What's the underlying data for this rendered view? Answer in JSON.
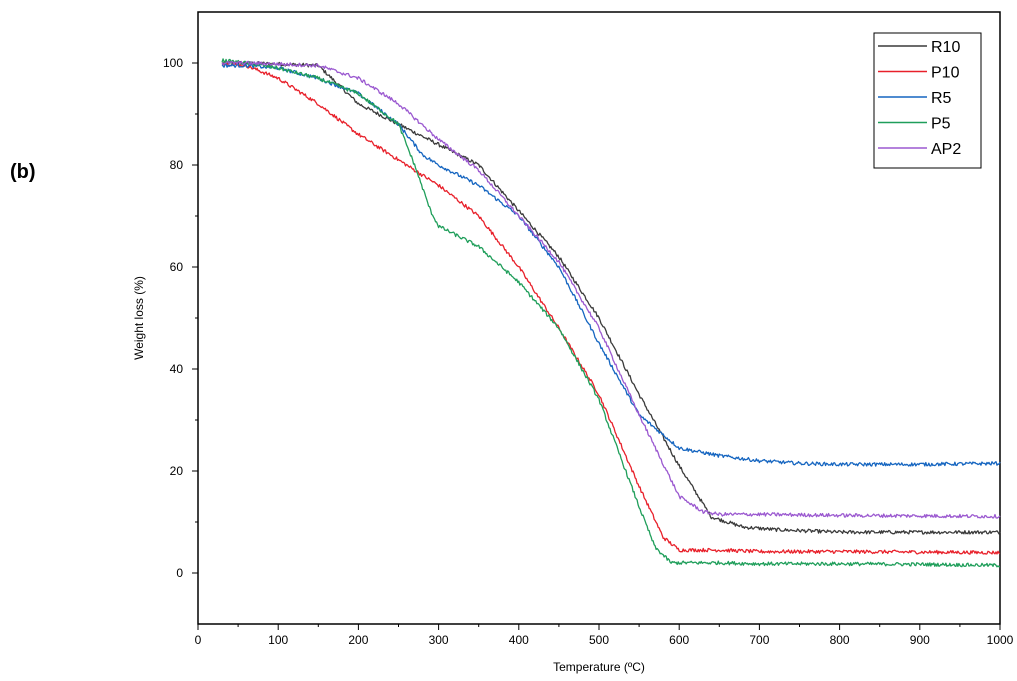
{
  "panel_label": "(b)",
  "chart_data": {
    "type": "line",
    "xlabel": "Temperature (ºC)",
    "ylabel": "Weight loss (%)",
    "xlim": [
      0,
      1000
    ],
    "ylim": [
      -10,
      110
    ],
    "xticks": [
      0,
      100,
      200,
      300,
      400,
      500,
      600,
      700,
      800,
      900,
      1000
    ],
    "yticks": [
      0,
      20,
      40,
      60,
      80,
      100
    ],
    "grid": false,
    "legend_position": "top-right",
    "series": [
      {
        "name": "R10",
        "color": "#3a3a3a",
        "x": [
          30,
          60,
          100,
          150,
          180,
          200,
          250,
          300,
          350,
          400,
          450,
          500,
          550,
          600,
          640,
          680,
          720,
          800,
          900,
          1000
        ],
        "y": [
          100,
          100,
          99.8,
          99.5,
          95,
          92,
          88,
          84,
          80,
          71,
          62,
          50,
          35,
          21,
          11,
          9,
          8.5,
          8,
          8,
          8
        ]
      },
      {
        "name": "P10",
        "color": "#e8202a",
        "x": [
          30,
          60,
          100,
          150,
          200,
          250,
          300,
          350,
          400,
          450,
          500,
          550,
          580,
          600,
          650,
          700,
          800,
          900,
          1000
        ],
        "y": [
          100,
          99.5,
          97,
          92,
          86,
          81,
          76,
          70,
          60,
          48,
          35,
          17,
          7,
          4.5,
          4.5,
          4.2,
          4.2,
          4.1,
          4
        ]
      },
      {
        "name": "R5",
        "color": "#1565c0",
        "x": [
          30,
          60,
          100,
          150,
          200,
          250,
          280,
          300,
          350,
          400,
          450,
          500,
          550,
          600,
          650,
          700,
          750,
          800,
          900,
          1000
        ],
        "y": [
          99.5,
          99.5,
          99,
          97,
          94,
          88,
          82,
          80,
          76,
          70,
          60,
          45,
          31,
          24.5,
          23,
          22,
          21.5,
          21.3,
          21.3,
          21.5
        ]
      },
      {
        "name": "P5",
        "color": "#1f9e5a",
        "x": [
          30,
          60,
          100,
          150,
          200,
          250,
          270,
          290,
          300,
          350,
          400,
          450,
          500,
          550,
          570,
          590,
          650,
          700,
          800,
          900,
          1000
        ],
        "y": [
          100.5,
          100,
          99,
          97,
          94,
          88,
          80,
          71,
          68,
          64,
          57,
          48,
          34,
          13,
          5,
          2,
          2,
          1.8,
          1.8,
          1.7,
          1.5
        ]
      },
      {
        "name": "AP2",
        "color": "#9b59d0",
        "x": [
          30,
          60,
          100,
          150,
          200,
          250,
          300,
          350,
          400,
          450,
          500,
          550,
          600,
          630,
          650,
          700,
          800,
          900,
          1000
        ],
        "y": [
          100,
          100,
          99.8,
          99.5,
          97,
          92,
          85,
          79,
          70,
          61,
          48,
          31,
          15,
          12,
          11.5,
          11.5,
          11.3,
          11.2,
          11.1
        ]
      }
    ]
  }
}
